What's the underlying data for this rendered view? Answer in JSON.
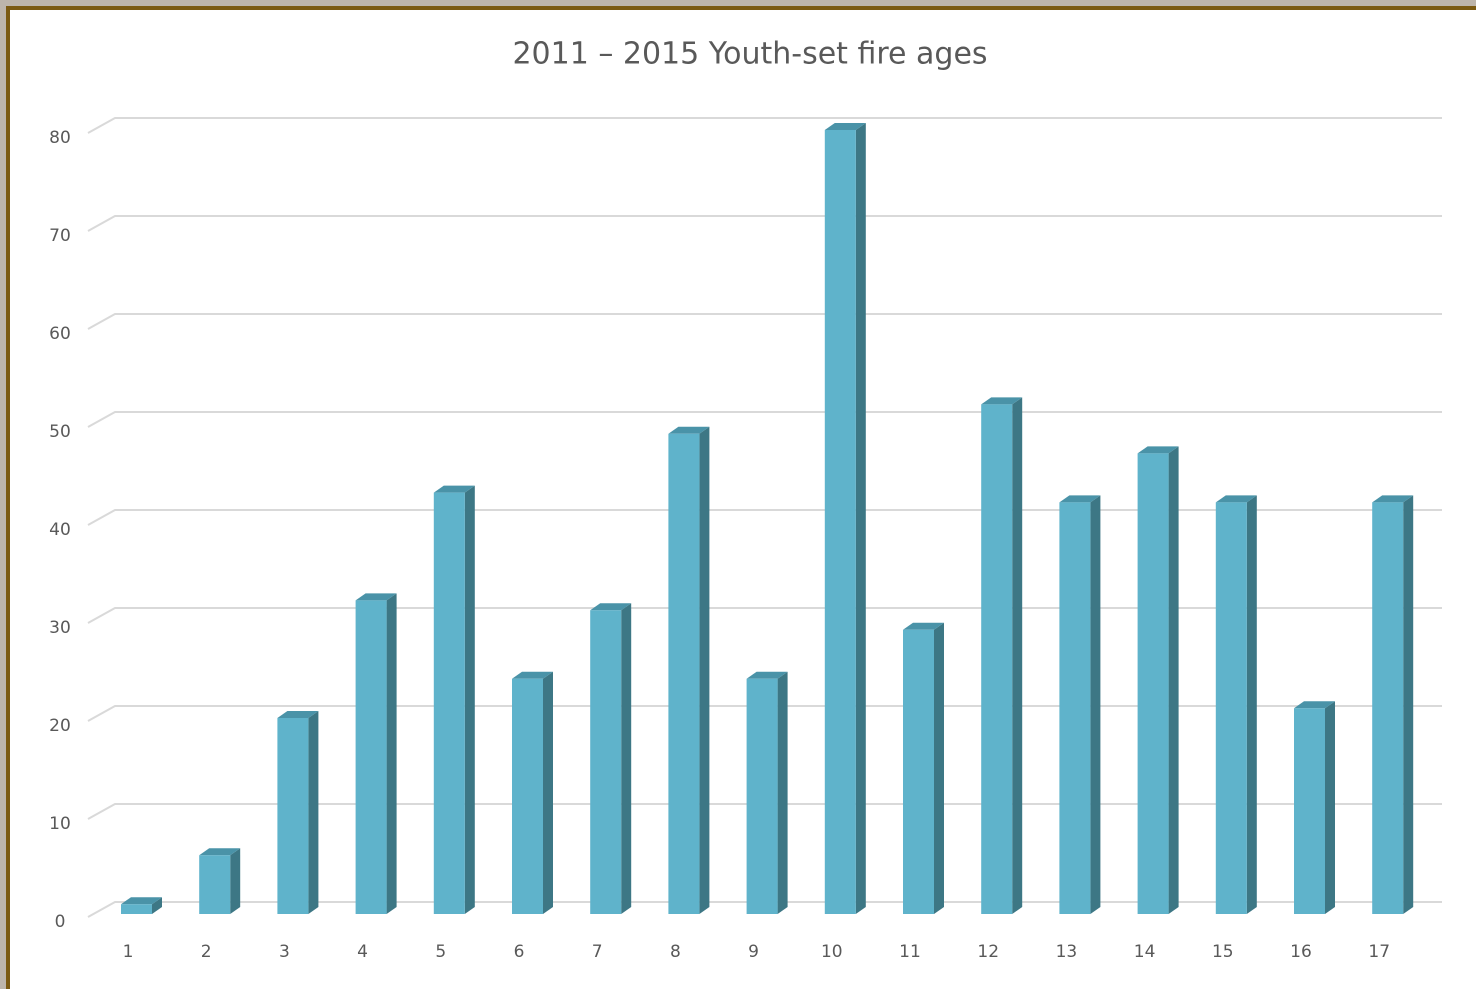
{
  "chart_data": {
    "type": "bar3d",
    "title": "2011 – 2015 Youth-set fire ages",
    "categories": [
      "1",
      "2",
      "3",
      "4",
      "5",
      "6",
      "7",
      "8",
      "9",
      "10",
      "11",
      "12",
      "13",
      "14",
      "15",
      "16",
      "17"
    ],
    "values": [
      1,
      6,
      20,
      32,
      43,
      24,
      31,
      49,
      24,
      80,
      29,
      52,
      42,
      47,
      42,
      21,
      42
    ],
    "color": "#5fb3cb",
    "ylim": [
      0,
      80
    ],
    "yticks": [
      0,
      10,
      20,
      30,
      40,
      50,
      60,
      70,
      80
    ],
    "grid": true
  }
}
